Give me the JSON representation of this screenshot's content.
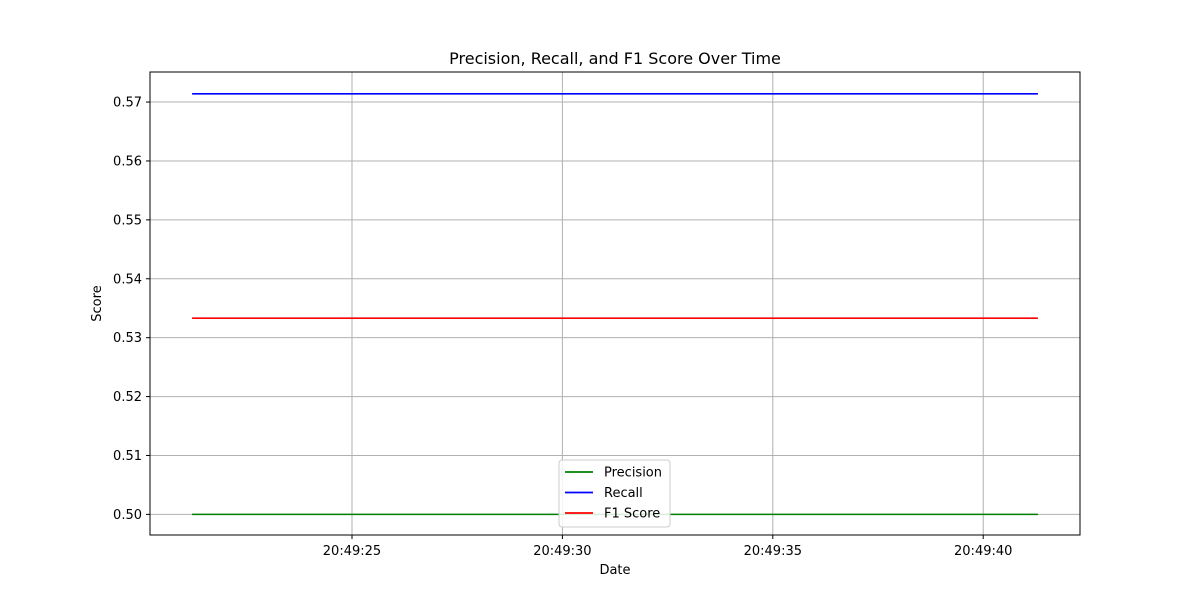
{
  "chart_data": {
    "type": "line",
    "title": "Precision, Recall, and F1 Score Over Time",
    "xlabel": "Date",
    "ylabel": "Score",
    "x_range": [
      "20:49:21.2",
      "20:49:41.3"
    ],
    "xlim": [
      "20:49:20.2",
      "20:49:42.3"
    ],
    "x_ticks": [
      "20:49:25",
      "20:49:30",
      "20:49:35",
      "20:49:40"
    ],
    "ylim": [
      0.4965,
      0.5751
    ],
    "y_ticks": [
      0.5,
      0.51,
      0.52,
      0.53,
      0.54,
      0.55,
      0.56,
      0.57
    ],
    "y_tick_labels": [
      "0.50",
      "0.51",
      "0.52",
      "0.53",
      "0.54",
      "0.55",
      "0.56",
      "0.57"
    ],
    "grid": true,
    "legend_position": "bottom-center",
    "series": [
      {
        "name": "Precision",
        "color": "#008000",
        "values": [
          0.5,
          0.5
        ]
      },
      {
        "name": "Recall",
        "color": "#0000ff",
        "values": [
          0.5714,
          0.5714
        ]
      },
      {
        "name": "F1 Score",
        "color": "#ff0000",
        "values": [
          0.5333,
          0.5333
        ]
      }
    ]
  }
}
